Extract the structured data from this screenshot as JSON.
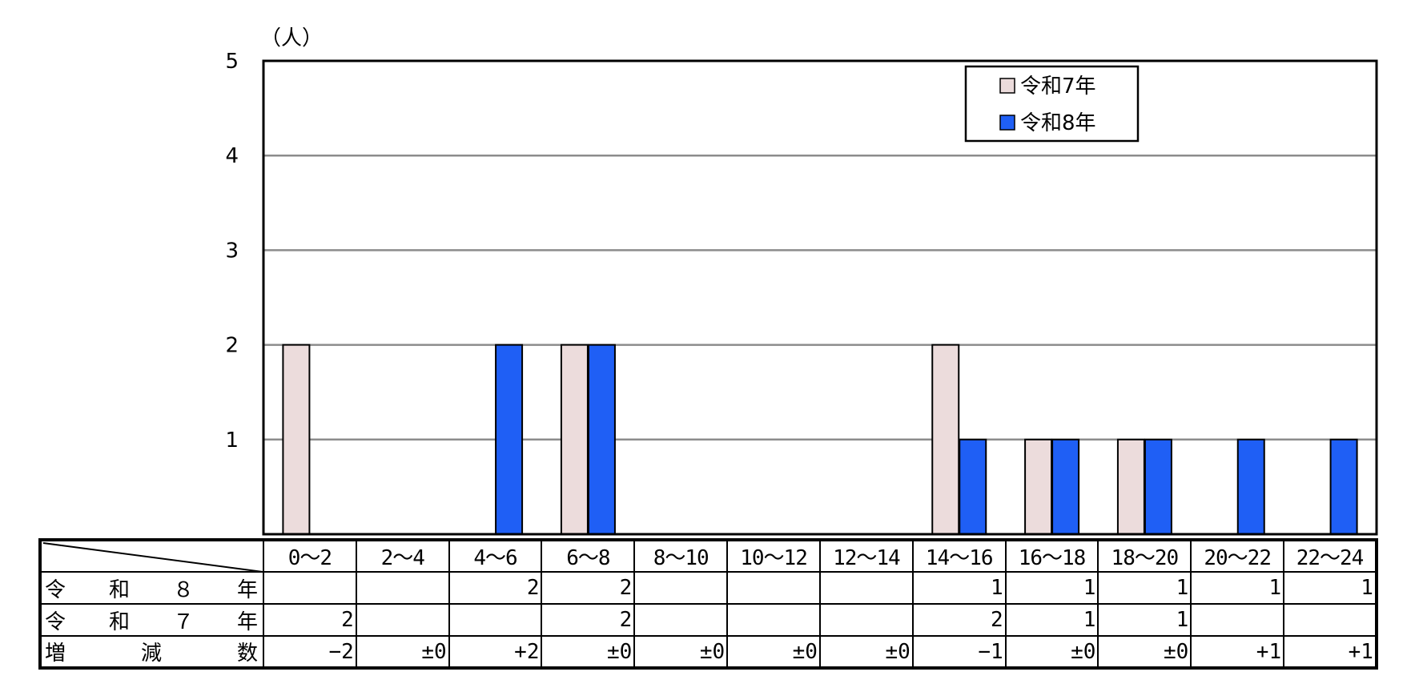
{
  "chart_data": {
    "type": "bar",
    "unit_label": "（人）",
    "categories": [
      "0～2",
      "2～4",
      "4～6",
      "6～8",
      "8～10",
      "10～12",
      "12～14",
      "14～16",
      "16～18",
      "18～20",
      "20～22",
      "22～24"
    ],
    "series": [
      {
        "name": "令和7年",
        "color": "#ecdcdc",
        "values": [
          2,
          0,
          0,
          2,
          0,
          0,
          0,
          2,
          1,
          1,
          0,
          0
        ]
      },
      {
        "name": "令和8年",
        "color": "#1f5ff5",
        "values": [
          0,
          0,
          2,
          2,
          0,
          0,
          0,
          1,
          1,
          1,
          1,
          1
        ]
      }
    ],
    "ylim": [
      0,
      5
    ],
    "yticks": [
      "1",
      "2",
      "3",
      "4",
      "5"
    ],
    "grid": true,
    "legend_position": "top-right"
  },
  "table": {
    "rows": [
      {
        "label": "令　和　８　年",
        "cells": [
          "",
          "",
          "2",
          "2",
          "",
          "",
          "",
          "1",
          "1",
          "1",
          "1",
          "1"
        ]
      },
      {
        "label": "令　和　７　年",
        "cells": [
          "2",
          "",
          "",
          "2",
          "",
          "",
          "",
          "2",
          "1",
          "1",
          "",
          ""
        ]
      },
      {
        "label": "増　　減　　数",
        "cells": [
          "−2",
          "±0",
          "+2",
          "±0",
          "±0",
          "±0",
          "±0",
          "−1",
          "±0",
          "±0",
          "+1",
          "+1"
        ]
      }
    ]
  }
}
